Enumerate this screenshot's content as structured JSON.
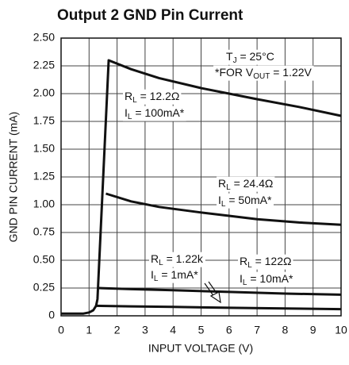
{
  "chart_data": {
    "type": "line",
    "title": "Output 2 GND Pin Current",
    "xlabel": "INPUT VOLTAGE (V)",
    "ylabel": "GND PIN CURRENT (mA)",
    "xlim": [
      0,
      10
    ],
    "xticks": [
      0,
      1,
      2,
      3,
      4,
      5,
      6,
      7,
      8,
      9,
      10
    ],
    "ylim": [
      0,
      2.5
    ],
    "yticks": [
      0,
      0.25,
      {
        "value": 0.5,
        "label": "0.50"
      },
      0.75,
      {
        "value": 1,
        "label": "1.00"
      },
      1.25,
      {
        "value": 1.5,
        "label": "1.50"
      },
      1.75,
      {
        "value": 2,
        "label": "2.00"
      },
      2.25,
      {
        "value": 2.5,
        "label": "2.50"
      }
    ],
    "grid": true,
    "series": [
      {
        "color": "#111111",
        "x": [
          0,
          0.8,
          1.0,
          1.15,
          1.25,
          1.3,
          1.7,
          2.5,
          3.5,
          5,
          6,
          7,
          8.5,
          10
        ],
        "values": [
          0.02,
          0.02,
          0.03,
          0.05,
          0.09,
          0.15,
          2.3,
          2.22,
          2.14,
          2.05,
          2.0,
          1.95,
          1.88,
          1.8
        ]
      },
      {
        "color": "#111111",
        "x": [
          1.6,
          2.5,
          3.5,
          5,
          6,
          7,
          8.5,
          10
        ],
        "values": [
          1.1,
          1.03,
          0.98,
          0.93,
          0.9,
          0.87,
          0.84,
          0.82
        ]
      },
      {
        "color": "#111111",
        "x": [
          1.35,
          2.5,
          4,
          6,
          8,
          10
        ],
        "values": [
          0.25,
          0.24,
          0.23,
          0.215,
          0.2,
          0.19
        ]
      },
      {
        "color": "#111111",
        "x": [
          1.25,
          2.5,
          4,
          6,
          8,
          10
        ],
        "values": [
          0.09,
          0.085,
          0.08,
          0.072,
          0.066,
          0.06
        ]
      }
    ],
    "annotations": [
      {
        "parts": [
          "T",
          "J",
          " = 25°C"
        ]
      },
      {
        "parts": [
          "*FOR V",
          "OUT",
          " = 1.22V"
        ]
      },
      {
        "parts": [
          "R",
          "L",
          " = 12.2Ω"
        ]
      },
      {
        "parts": [
          "I",
          "L",
          " = 100mA*"
        ]
      },
      {
        "parts": [
          "R",
          "L",
          " = 24.4Ω"
        ]
      },
      {
        "parts": [
          "I",
          "L",
          " = 50mA*"
        ]
      },
      {
        "parts": [
          "R",
          "L",
          " = 1.22k"
        ]
      },
      {
        "parts": [
          "I",
          "L",
          " = 1mA*"
        ]
      },
      {
        "parts": [
          "R",
          "L",
          " = 122Ω"
        ]
      },
      {
        "parts": [
          "I",
          "L",
          " = 10mA*"
        ]
      }
    ]
  }
}
